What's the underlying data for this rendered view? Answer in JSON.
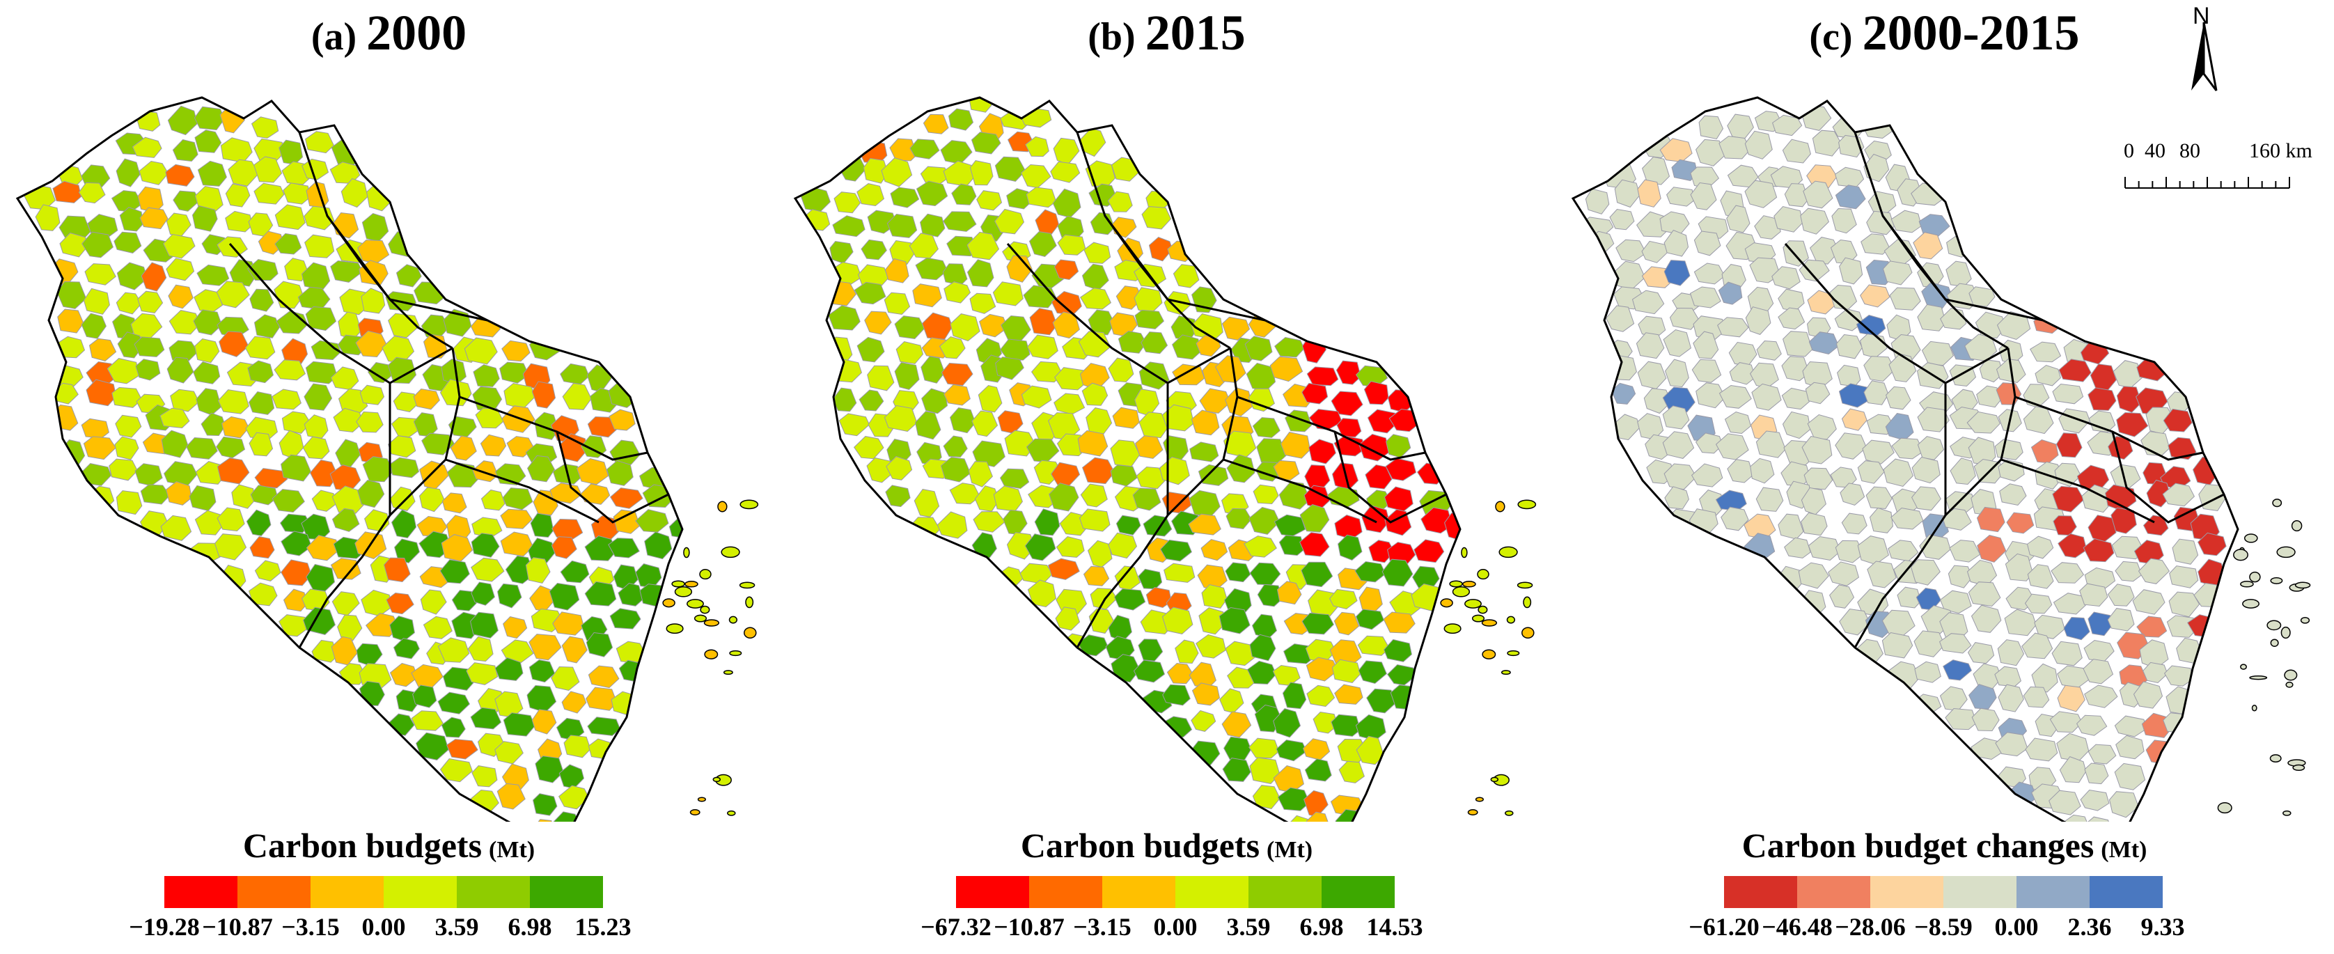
{
  "panels": [
    {
      "tag": "(a)",
      "year": "2000",
      "legend": {
        "title": "Carbon budgets",
        "unit": "(Mt)",
        "colors": [
          "#ff0000",
          "#ff6a00",
          "#ffc000",
          "#d4f000",
          "#8fcc00",
          "#3da800"
        ],
        "ticks": [
          "−19.28",
          "−10.87",
          "−3.15",
          "0.00",
          "3.59",
          "6.98",
          "15.23"
        ]
      }
    },
    {
      "tag": "(b)",
      "year": "2015",
      "legend": {
        "title": "Carbon budgets",
        "unit": "(Mt)",
        "colors": [
          "#ff0000",
          "#ff6a00",
          "#ffc000",
          "#d4f000",
          "#8fcc00",
          "#3da800"
        ],
        "ticks": [
          "−67.32",
          "−10.87",
          "−3.15",
          "0.00",
          "3.59",
          "6.98",
          "14.53"
        ]
      }
    },
    {
      "tag": "(c)",
      "year": "2000-2015",
      "legend": {
        "title": "Carbon budget changes",
        "unit": "(Mt)",
        "colors": [
          "#d73027",
          "#f08060",
          "#fdd49e",
          "#d9dfc8",
          "#91a9c6",
          "#4a78c0"
        ],
        "ticks": [
          "−61.20",
          "−46.48",
          "−28.06",
          "−8.59",
          "0.00",
          "2.36",
          "9.33"
        ]
      }
    }
  ],
  "north_arrow": {
    "label": "N"
  },
  "scalebar": {
    "labels": [
      "0",
      "40",
      "80",
      "160 km"
    ]
  },
  "map_colors": {
    "background_fill": "#ffffff",
    "boundary": "#000000",
    "county_line": "#9a9aa8"
  }
}
